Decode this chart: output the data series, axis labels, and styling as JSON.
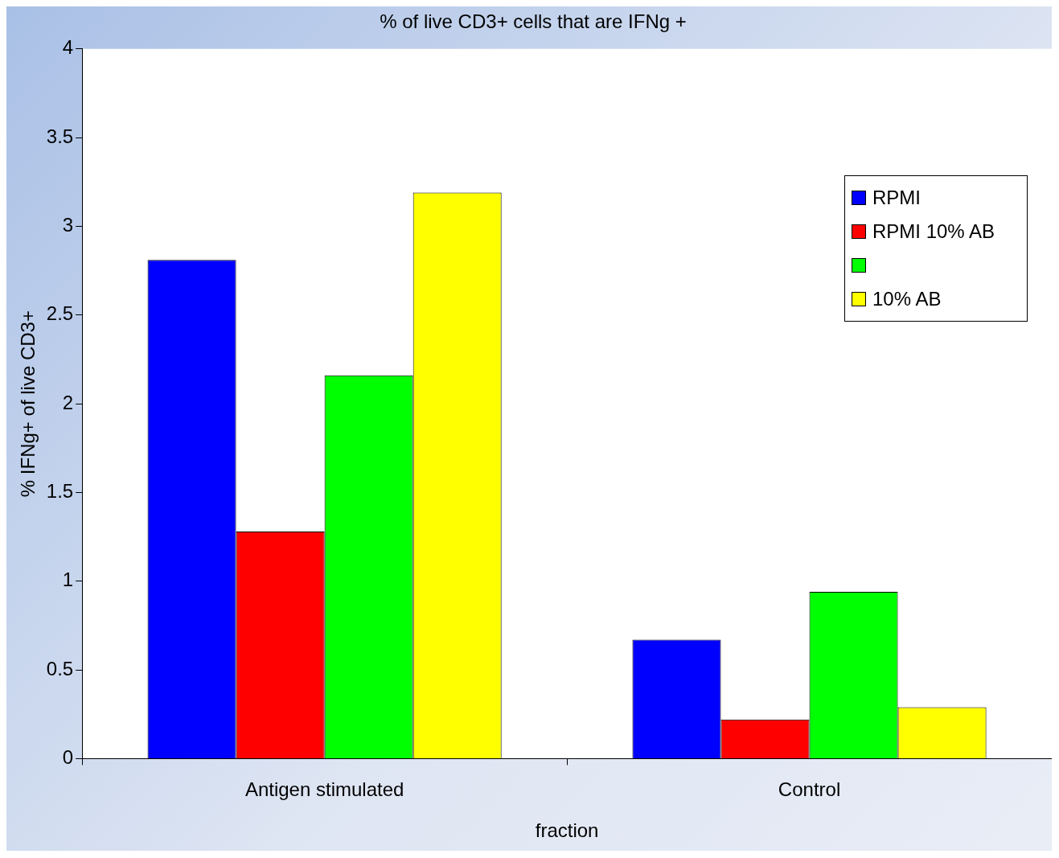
{
  "chart_data": {
    "type": "bar",
    "title": "% of live CD3+ cells that are IFNg +",
    "xlabel": "fraction",
    "ylabel": "% IFNg+ of live CD3+",
    "categories": [
      "Antigen stimulated",
      "Control"
    ],
    "series": [
      {
        "name": "RPMI",
        "color": "#0000ff",
        "values": [
          2.81,
          0.67
        ]
      },
      {
        "name": "RPMI 10% AB",
        "color": "#ff0000",
        "values": [
          1.28,
          0.22
        ]
      },
      {
        "color": "#00ff00",
        "values": [
          2.16,
          0.94
        ]
      },
      {
        "name": "10% AB",
        "color": "#ffff00",
        "values": [
          3.19,
          0.29
        ]
      }
    ],
    "ylim": [
      0,
      4
    ],
    "yticks": [
      0,
      0.5,
      1,
      1.5,
      2,
      2.5,
      3,
      3.5,
      4
    ],
    "grid": false,
    "legend": "top right"
  }
}
